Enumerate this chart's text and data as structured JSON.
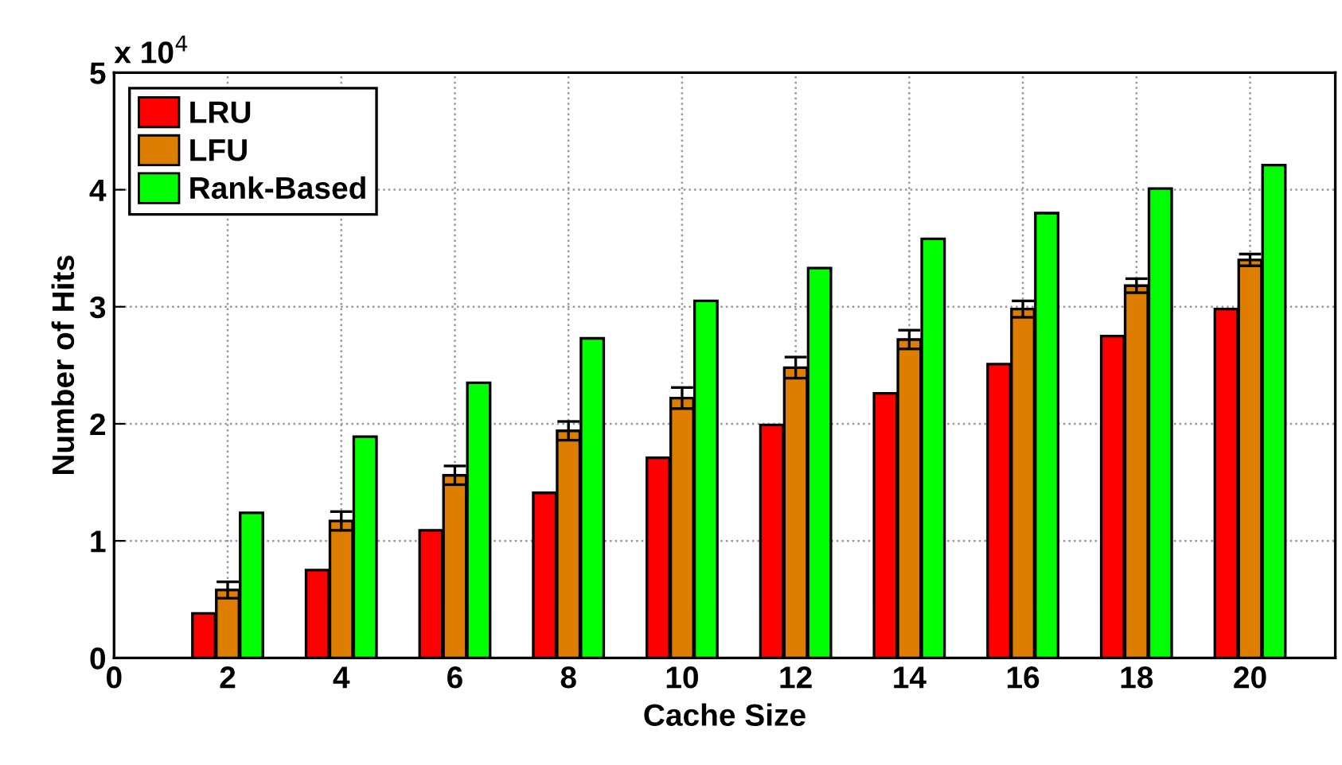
{
  "chart_data": {
    "type": "bar",
    "xlabel": "Cache Size",
    "ylabel": "Number of Hits",
    "x": [
      2,
      4,
      6,
      8,
      10,
      12,
      14,
      16,
      18,
      20
    ],
    "series": [
      {
        "name": "LRU",
        "color": "#ff0000",
        "values": [
          0.38,
          0.75,
          1.09,
          1.41,
          1.71,
          1.99,
          2.26,
          2.51,
          2.75,
          2.98
        ]
      },
      {
        "name": "LFU",
        "color": "#de7e00",
        "values": [
          0.58,
          1.17,
          1.56,
          1.94,
          2.22,
          2.48,
          2.72,
          2.98,
          3.18,
          3.4
        ],
        "errors": [
          0.07,
          0.08,
          0.08,
          0.08,
          0.09,
          0.09,
          0.08,
          0.07,
          0.06,
          0.05
        ]
      },
      {
        "name": "Rank-Based",
        "color": "#00ff00",
        "values": [
          1.24,
          1.89,
          2.35,
          2.73,
          3.05,
          3.33,
          3.58,
          3.8,
          4.01,
          4.21
        ]
      }
    ],
    "xlim": [
      0,
      21.5
    ],
    "xticks": [
      0,
      2,
      4,
      6,
      8,
      10,
      12,
      14,
      16,
      18,
      20
    ],
    "ylim": [
      0,
      5
    ],
    "yticks": [
      0,
      1,
      2,
      3,
      4,
      5
    ],
    "annotations": [
      "x 10$^{4}$"
    ],
    "grid": true,
    "legend": "top left"
  }
}
